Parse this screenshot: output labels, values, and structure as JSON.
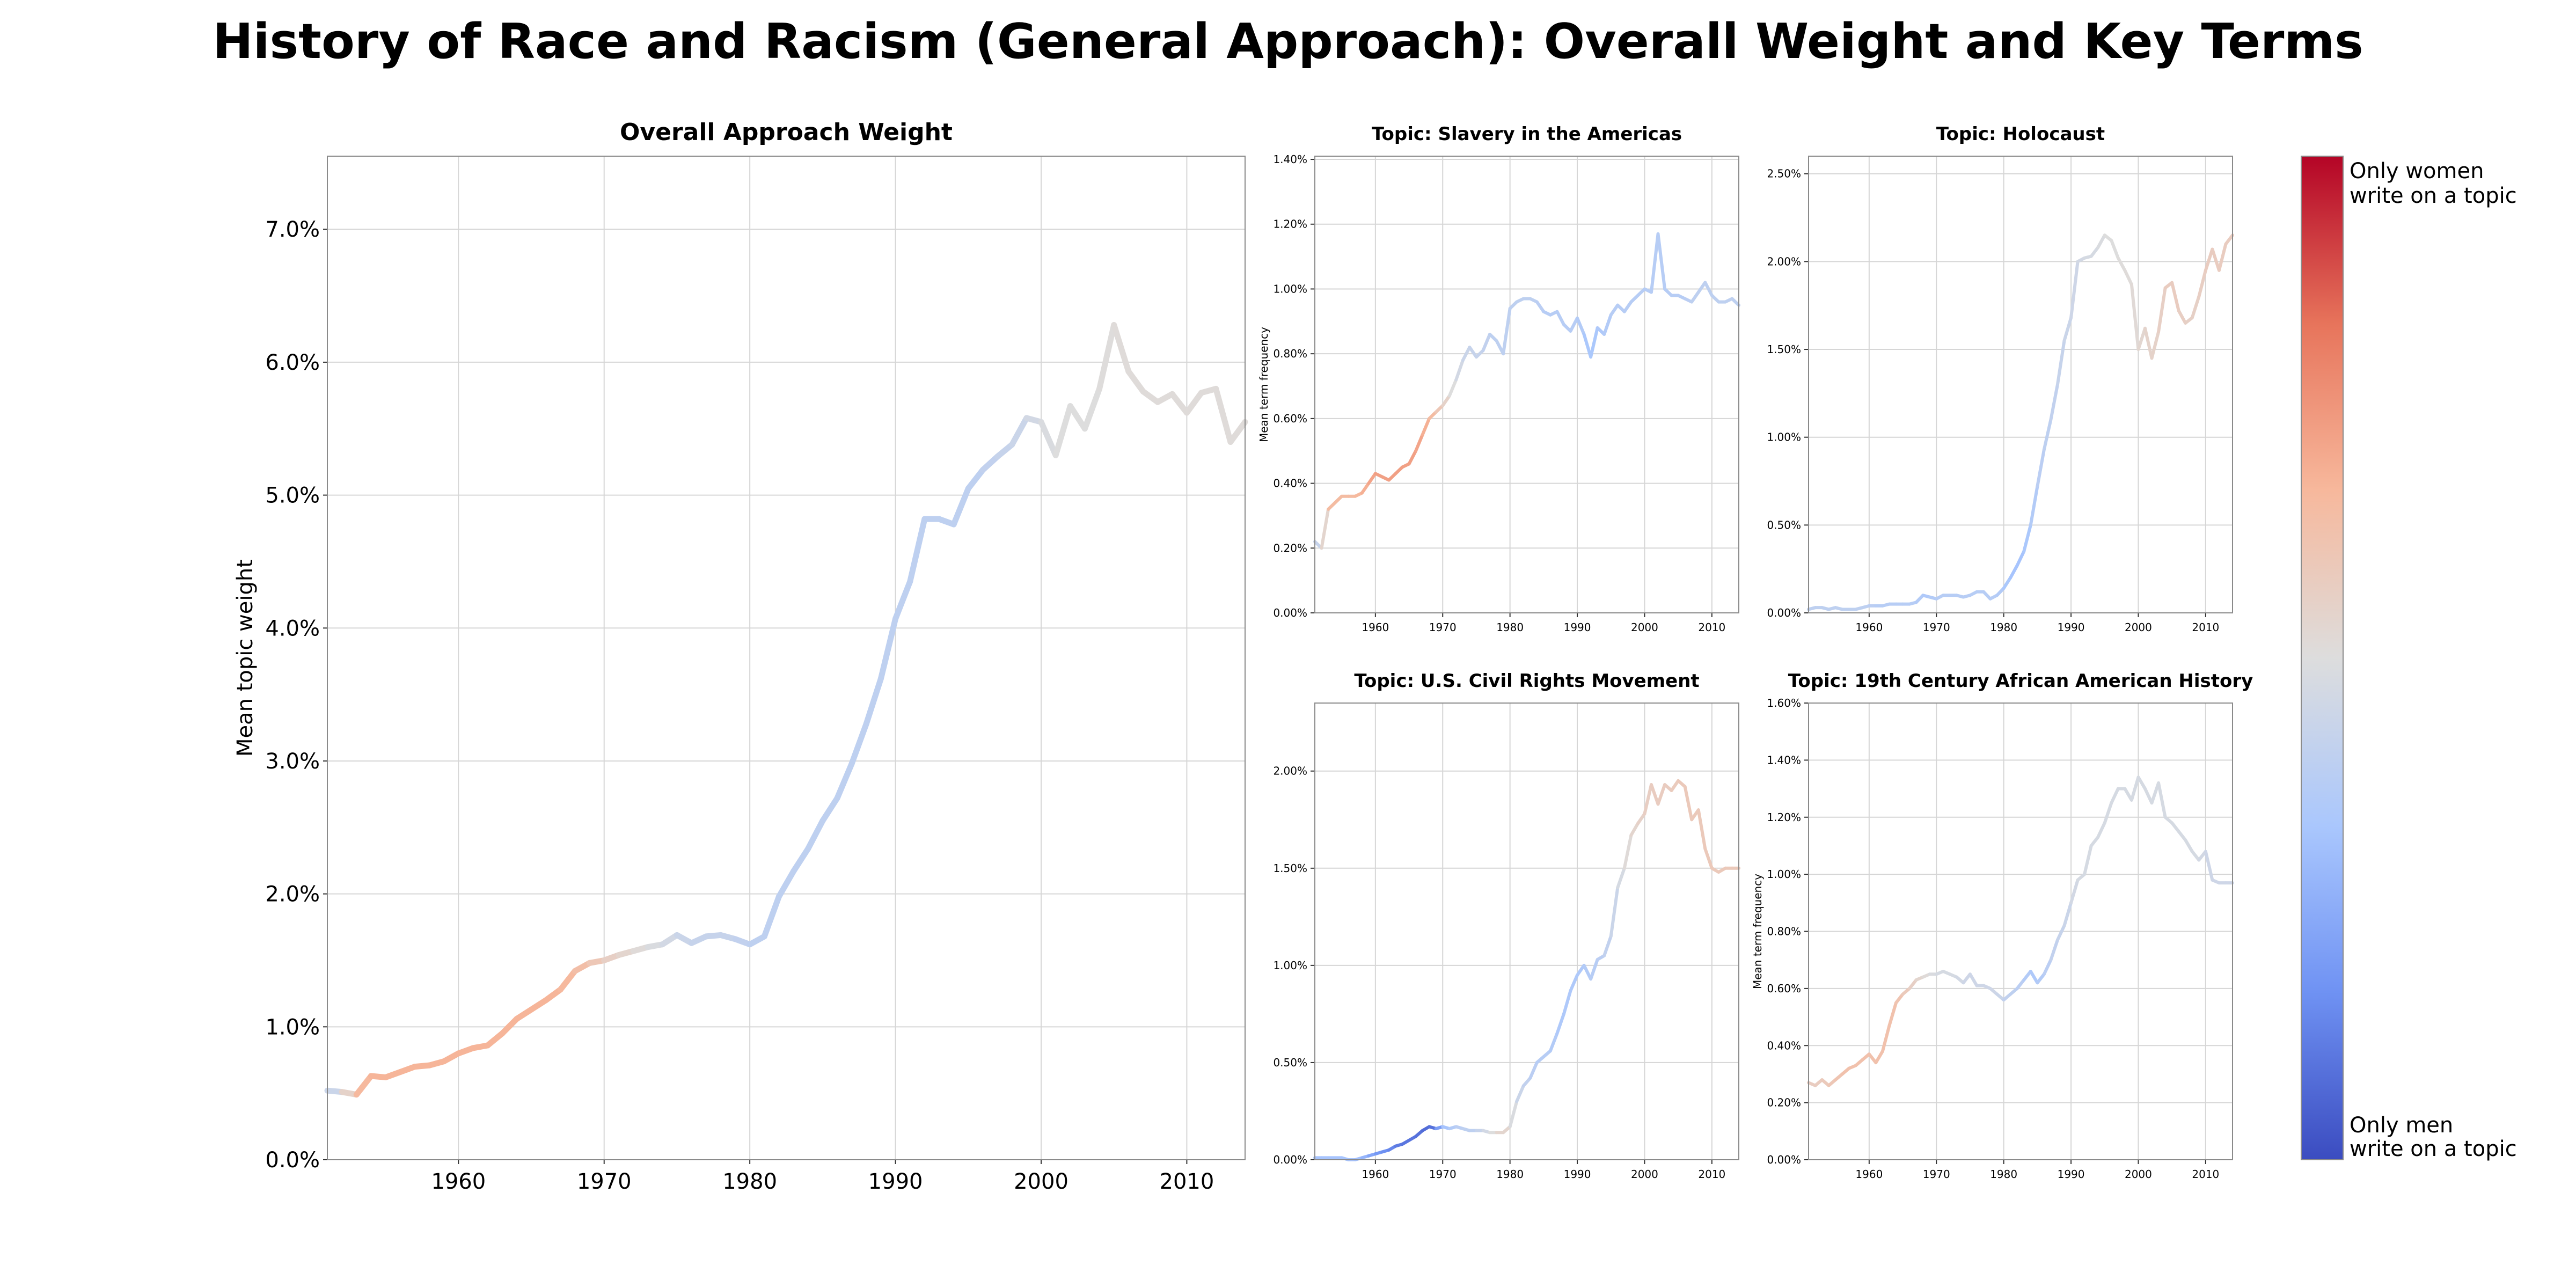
{
  "title": "History of Race and Racism (General Approach): Overall Weight and Key Terms",
  "colorbar": {
    "top_label": [
      "Only women",
      "write on a topic"
    ],
    "bottom_label": [
      "Only men",
      "write on a topic"
    ],
    "colors": [
      "#b40426",
      "#e7745b",
      "#f7b89c",
      "#dddddd",
      "#aac7fd",
      "#6f92f3",
      "#3b4cc0"
    ]
  },
  "chart_data": [
    {
      "id": "overall",
      "type": "line",
      "title": "Overall Approach Weight",
      "xlabel": "",
      "ylabel": "Mean topic weight",
      "xlim": [
        1951,
        2014
      ],
      "ylim": [
        0,
        7.55
      ],
      "x_ticks": [
        1960,
        1970,
        1980,
        1990,
        2000,
        2010
      ],
      "x_tick_labels": [
        "1960",
        "1970",
        "1980",
        "1990",
        "2000",
        "2010"
      ],
      "y_ticks": [
        0,
        1,
        2,
        3,
        4,
        5,
        6,
        7
      ],
      "y_tick_labels": [
        "0.0%",
        "1.0%",
        "2.0%",
        "3.0%",
        "4.0%",
        "5.0%",
        "6.0%",
        "7.0%"
      ],
      "grid": true,
      "x": [
        1951,
        1952,
        1953,
        1954,
        1955,
        1956,
        1957,
        1958,
        1959,
        1960,
        1961,
        1962,
        1963,
        1964,
        1965,
        1966,
        1967,
        1968,
        1969,
        1970,
        1971,
        1972,
        1973,
        1974,
        1975,
        1976,
        1977,
        1978,
        1979,
        1980,
        1981,
        1982,
        1983,
        1984,
        1985,
        1986,
        1987,
        1988,
        1989,
        1990,
        1991,
        1992,
        1993,
        1994,
        1995,
        1996,
        1997,
        1998,
        1999,
        2000,
        2001,
        2002,
        2003,
        2004,
        2005,
        2006,
        2007,
        2008,
        2009,
        2010,
        2011,
        2012,
        2013,
        2014
      ],
      "values": [
        0.52,
        0.51,
        0.49,
        0.63,
        0.62,
        0.66,
        0.7,
        0.71,
        0.74,
        0.8,
        0.84,
        0.86,
        0.95,
        1.06,
        1.13,
        1.2,
        1.28,
        1.42,
        1.48,
        1.5,
        1.54,
        1.57,
        1.6,
        1.62,
        1.69,
        1.63,
        1.68,
        1.69,
        1.66,
        1.62,
        1.68,
        1.98,
        2.17,
        2.34,
        2.55,
        2.72,
        2.98,
        3.28,
        3.62,
        4.07,
        4.35,
        4.82,
        4.82,
        4.78,
        5.05,
        5.19,
        5.29,
        5.38,
        5.58,
        5.55,
        5.3,
        5.67,
        5.5,
        5.8,
        6.28,
        5.93,
        5.78,
        5.7,
        5.76,
        5.62,
        5.77,
        5.8,
        5.4,
        5.55
      ],
      "gender_score": [
        -0.15,
        -0.1,
        0.3,
        0.35,
        0.35,
        0.35,
        0.35,
        0.35,
        0.35,
        0.35,
        0.35,
        0.35,
        0.35,
        0.35,
        0.35,
        0.35,
        0.35,
        0.3,
        0.25,
        0.15,
        0.1,
        0.05,
        0.0,
        -0.05,
        -0.1,
        -0.15,
        -0.15,
        -0.15,
        -0.15,
        -0.2,
        -0.2,
        -0.2,
        -0.2,
        -0.2,
        -0.2,
        -0.2,
        -0.2,
        -0.2,
        -0.2,
        -0.2,
        -0.2,
        -0.2,
        -0.2,
        -0.2,
        -0.2,
        -0.2,
        -0.15,
        -0.15,
        -0.1,
        -0.05,
        0.0,
        0.0,
        0.0,
        0.0,
        0.02,
        0.02,
        0.02,
        0.02,
        0.02,
        0.02,
        0.02,
        0.02,
        0.02,
        0.02
      ]
    },
    {
      "id": "slavery",
      "type": "line",
      "title": "Topic: Slavery in the Americas",
      "ylabel": "Mean term frequency",
      "xlim": [
        1951,
        2014
      ],
      "ylim": [
        0,
        1.41
      ],
      "x_ticks": [
        1960,
        1970,
        1980,
        1990,
        2000,
        2010
      ],
      "x_tick_labels": [
        "1960",
        "1970",
        "1980",
        "1990",
        "2000",
        "2010"
      ],
      "y_ticks": [
        0,
        0.2,
        0.4,
        0.6,
        0.8,
        1.0,
        1.2,
        1.4
      ],
      "y_tick_labels": [
        "0.00%",
        "0.20%",
        "0.40%",
        "0.60%",
        "0.80%",
        "1.00%",
        "1.20%",
        "1.40%"
      ],
      "grid": true,
      "x": [
        1951,
        1952,
        1953,
        1954,
        1955,
        1956,
        1957,
        1958,
        1959,
        1960,
        1961,
        1962,
        1963,
        1964,
        1965,
        1966,
        1967,
        1968,
        1969,
        1970,
        1971,
        1972,
        1973,
        1974,
        1975,
        1976,
        1977,
        1978,
        1979,
        1980,
        1981,
        1982,
        1983,
        1984,
        1985,
        1986,
        1987,
        1988,
        1989,
        1990,
        1991,
        1992,
        1993,
        1994,
        1995,
        1996,
        1997,
        1998,
        1999,
        2000,
        2001,
        2002,
        2003,
        2004,
        2005,
        2006,
        2007,
        2008,
        2009,
        2010,
        2011,
        2012,
        2013,
        2014
      ],
      "values": [
        0.22,
        0.2,
        0.32,
        0.34,
        0.36,
        0.36,
        0.36,
        0.37,
        0.4,
        0.43,
        0.42,
        0.41,
        0.43,
        0.45,
        0.46,
        0.5,
        0.55,
        0.6,
        0.62,
        0.64,
        0.67,
        0.72,
        0.78,
        0.82,
        0.79,
        0.81,
        0.86,
        0.84,
        0.8,
        0.94,
        0.96,
        0.97,
        0.97,
        0.96,
        0.93,
        0.92,
        0.93,
        0.89,
        0.87,
        0.91,
        0.86,
        0.79,
        0.88,
        0.86,
        0.92,
        0.95,
        0.93,
        0.96,
        0.98,
        1.0,
        0.99,
        1.17,
        1.0,
        0.98,
        0.98,
        0.97,
        0.96,
        0.99,
        1.02,
        0.98,
        0.96,
        0.96,
        0.97,
        0.95
      ],
      "gender_score": [
        -0.15,
        -0.15,
        0.3,
        0.3,
        0.3,
        0.3,
        0.3,
        0.35,
        0.4,
        0.45,
        0.45,
        0.45,
        0.45,
        0.45,
        0.45,
        0.45,
        0.4,
        0.35,
        0.25,
        0.15,
        0.05,
        -0.05,
        -0.1,
        -0.15,
        -0.15,
        -0.15,
        -0.2,
        -0.2,
        -0.2,
        -0.2,
        -0.2,
        -0.2,
        -0.2,
        -0.2,
        -0.25,
        -0.25,
        -0.25,
        -0.25,
        -0.25,
        -0.25,
        -0.3,
        -0.35,
        -0.3,
        -0.3,
        -0.25,
        -0.25,
        -0.25,
        -0.25,
        -0.25,
        -0.25,
        -0.25,
        -0.25,
        -0.25,
        -0.25,
        -0.25,
        -0.25,
        -0.2,
        -0.2,
        -0.2,
        -0.2,
        -0.2,
        -0.2,
        -0.2,
        -0.2
      ]
    },
    {
      "id": "holocaust",
      "type": "line",
      "title": "Topic: Holocaust",
      "ylabel": "",
      "xlim": [
        1951,
        2014
      ],
      "ylim": [
        0,
        2.6
      ],
      "x_ticks": [
        1960,
        1970,
        1980,
        1990,
        2000,
        2010
      ],
      "x_tick_labels": [
        "1960",
        "1970",
        "1980",
        "1990",
        "2000",
        "2010"
      ],
      "y_ticks": [
        0,
        0.5,
        1.0,
        1.5,
        2.0,
        2.5
      ],
      "y_tick_labels": [
        "0.00%",
        "0.50%",
        "1.00%",
        "1.50%",
        "2.00%",
        "2.50%"
      ],
      "grid": true,
      "x": [
        1951,
        1952,
        1953,
        1954,
        1955,
        1956,
        1957,
        1958,
        1959,
        1960,
        1961,
        1962,
        1963,
        1964,
        1965,
        1966,
        1967,
        1968,
        1969,
        1970,
        1971,
        1972,
        1973,
        1974,
        1975,
        1976,
        1977,
        1978,
        1979,
        1980,
        1981,
        1982,
        1983,
        1984,
        1985,
        1986,
        1987,
        1988,
        1989,
        1990,
        1991,
        1992,
        1993,
        1994,
        1995,
        1996,
        1997,
        1998,
        1999,
        2000,
        2001,
        2002,
        2003,
        2004,
        2005,
        2006,
        2007,
        2008,
        2009,
        2010,
        2011,
        2012,
        2013,
        2014
      ],
      "values": [
        0.02,
        0.03,
        0.03,
        0.02,
        0.03,
        0.02,
        0.02,
        0.02,
        0.03,
        0.04,
        0.04,
        0.04,
        0.05,
        0.05,
        0.05,
        0.05,
        0.06,
        0.1,
        0.09,
        0.08,
        0.1,
        0.1,
        0.1,
        0.09,
        0.1,
        0.12,
        0.12,
        0.08,
        0.1,
        0.14,
        0.2,
        0.27,
        0.35,
        0.5,
        0.72,
        0.93,
        1.1,
        1.3,
        1.55,
        1.68,
        2.0,
        2.02,
        2.03,
        2.08,
        2.15,
        2.12,
        2.02,
        1.95,
        1.87,
        1.5,
        1.62,
        1.45,
        1.6,
        1.85,
        1.88,
        1.72,
        1.65,
        1.68,
        1.8,
        1.95,
        2.07,
        1.95,
        2.1,
        2.15
      ],
      "gender_score": [
        -0.2,
        -0.2,
        -0.2,
        -0.2,
        -0.2,
        -0.2,
        -0.2,
        -0.2,
        -0.2,
        -0.2,
        -0.25,
        -0.25,
        -0.25,
        -0.25,
        -0.25,
        -0.25,
        -0.25,
        -0.3,
        -0.3,
        -0.25,
        -0.25,
        -0.25,
        -0.25,
        -0.25,
        -0.25,
        -0.25,
        -0.25,
        -0.25,
        -0.25,
        -0.3,
        -0.35,
        -0.35,
        -0.35,
        -0.3,
        -0.25,
        -0.2,
        -0.2,
        -0.15,
        -0.15,
        -0.1,
        -0.1,
        -0.05,
        -0.05,
        -0.05,
        0.0,
        0.0,
        0.0,
        0.02,
        0.02,
        0.05,
        0.08,
        0.1,
        0.1,
        0.15,
        0.15,
        0.15,
        0.12,
        0.12,
        0.12,
        0.15,
        0.15,
        0.15,
        0.15,
        0.15
      ]
    },
    {
      "id": "civil-rights",
      "type": "line",
      "title": "Topic: U.S. Civil Rights Movement",
      "ylabel": "",
      "xlim": [
        1951,
        2014
      ],
      "ylim": [
        0,
        2.35
      ],
      "x_ticks": [
        1960,
        1970,
        1980,
        1990,
        2000,
        2010
      ],
      "x_tick_labels": [
        "1960",
        "1970",
        "1980",
        "1990",
        "2000",
        "2010"
      ],
      "y_ticks": [
        0,
        0.5,
        1.0,
        1.5,
        2.0
      ],
      "y_tick_labels": [
        "0.00%",
        "0.50%",
        "1.00%",
        "1.50%",
        "2.00%"
      ],
      "grid": true,
      "x": [
        1951,
        1952,
        1953,
        1954,
        1955,
        1956,
        1957,
        1958,
        1959,
        1960,
        1961,
        1962,
        1963,
        1964,
        1965,
        1966,
        1967,
        1968,
        1969,
        1970,
        1971,
        1972,
        1973,
        1974,
        1975,
        1976,
        1977,
        1978,
        1979,
        1980,
        1981,
        1982,
        1983,
        1984,
        1985,
        1986,
        1987,
        1988,
        1989,
        1990,
        1991,
        1992,
        1993,
        1994,
        1995,
        1996,
        1997,
        1998,
        1999,
        2000,
        2001,
        2002,
        2003,
        2004,
        2005,
        2006,
        2007,
        2008,
        2009,
        2010,
        2011,
        2012,
        2013,
        2014
      ],
      "values": [
        0.01,
        0.01,
        0.01,
        0.01,
        0.01,
        0.0,
        0.0,
        0.01,
        0.02,
        0.03,
        0.04,
        0.05,
        0.07,
        0.08,
        0.1,
        0.12,
        0.15,
        0.17,
        0.16,
        0.17,
        0.16,
        0.17,
        0.16,
        0.15,
        0.15,
        0.15,
        0.14,
        0.14,
        0.14,
        0.17,
        0.3,
        0.38,
        0.42,
        0.5,
        0.53,
        0.56,
        0.65,
        0.75,
        0.87,
        0.95,
        1.0,
        0.93,
        1.03,
        1.05,
        1.15,
        1.4,
        1.5,
        1.67,
        1.73,
        1.78,
        1.93,
        1.83,
        1.93,
        1.9,
        1.95,
        1.92,
        1.75,
        1.8,
        1.6,
        1.5,
        1.48,
        1.5,
        1.5,
        1.5
      ],
      "gender_score": [
        -0.35,
        -0.35,
        -0.35,
        -0.35,
        -0.35,
        -0.35,
        -0.35,
        -0.4,
        -0.5,
        -0.6,
        -0.65,
        -0.7,
        -0.75,
        -0.8,
        -0.8,
        -0.8,
        -0.85,
        -0.85,
        -0.8,
        -0.4,
        -0.3,
        -0.25,
        -0.2,
        -0.2,
        -0.2,
        -0.1,
        -0.05,
        0.05,
        0.1,
        0.05,
        -0.1,
        -0.15,
        -0.2,
        -0.25,
        -0.25,
        -0.25,
        -0.3,
        -0.3,
        -0.3,
        -0.3,
        -0.3,
        -0.25,
        -0.25,
        -0.2,
        -0.15,
        -0.1,
        0.0,
        0.05,
        0.1,
        0.12,
        0.15,
        0.15,
        0.15,
        0.15,
        0.18,
        0.18,
        0.18,
        0.18,
        0.18,
        0.18,
        0.18,
        0.18,
        0.18,
        0.18
      ]
    },
    {
      "id": "african-american",
      "type": "line",
      "title": "Topic: 19th Century African American History",
      "ylabel": "Mean term frequency",
      "xlim": [
        1951,
        2014
      ],
      "ylim": [
        0,
        1.6
      ],
      "x_ticks": [
        1960,
        1970,
        1980,
        1990,
        2000,
        2010
      ],
      "x_tick_labels": [
        "1960",
        "1970",
        "1980",
        "1990",
        "2000",
        "2010"
      ],
      "y_ticks": [
        0,
        0.2,
        0.4,
        0.6,
        0.8,
        1.0,
        1.2,
        1.4,
        1.6
      ],
      "y_tick_labels": [
        "0.00%",
        "0.20%",
        "0.40%",
        "0.60%",
        "0.80%",
        "1.00%",
        "1.20%",
        "1.40%",
        "1.60%"
      ],
      "grid": true,
      "x": [
        1951,
        1952,
        1953,
        1954,
        1955,
        1956,
        1957,
        1958,
        1959,
        1960,
        1961,
        1962,
        1963,
        1964,
        1965,
        1966,
        1967,
        1968,
        1969,
        1970,
        1971,
        1972,
        1973,
        1974,
        1975,
        1976,
        1977,
        1978,
        1979,
        1980,
        1981,
        1982,
        1983,
        1984,
        1985,
        1986,
        1987,
        1988,
        1989,
        1990,
        1991,
        1992,
        1993,
        1994,
        1995,
        1996,
        1997,
        1998,
        1999,
        2000,
        2001,
        2002,
        2003,
        2004,
        2005,
        2006,
        2007,
        2008,
        2009,
        2010,
        2011,
        2012,
        2013,
        2014
      ],
      "values": [
        0.27,
        0.26,
        0.28,
        0.26,
        0.28,
        0.3,
        0.32,
        0.33,
        0.35,
        0.37,
        0.34,
        0.38,
        0.47,
        0.55,
        0.58,
        0.6,
        0.63,
        0.64,
        0.65,
        0.65,
        0.66,
        0.65,
        0.64,
        0.62,
        0.65,
        0.61,
        0.61,
        0.6,
        0.58,
        0.56,
        0.58,
        0.6,
        0.63,
        0.66,
        0.62,
        0.65,
        0.7,
        0.77,
        0.82,
        0.9,
        0.98,
        1.0,
        1.1,
        1.13,
        1.18,
        1.25,
        1.3,
        1.3,
        1.26,
        1.34,
        1.3,
        1.25,
        1.32,
        1.2,
        1.18,
        1.15,
        1.12,
        1.08,
        1.05,
        1.08,
        0.98,
        0.97,
        0.97,
        0.97
      ],
      "gender_score": [
        0.15,
        0.15,
        0.15,
        0.2,
        0.2,
        0.25,
        0.25,
        0.25,
        0.25,
        0.25,
        0.25,
        0.25,
        0.25,
        0.25,
        0.2,
        0.15,
        0.1,
        0.05,
        0.0,
        -0.05,
        -0.05,
        -0.05,
        -0.05,
        -0.1,
        -0.1,
        -0.1,
        -0.1,
        -0.1,
        -0.1,
        -0.15,
        -0.2,
        -0.2,
        -0.25,
        -0.3,
        -0.3,
        -0.25,
        -0.2,
        -0.15,
        -0.15,
        -0.1,
        -0.05,
        -0.05,
        -0.05,
        -0.05,
        -0.05,
        -0.05,
        -0.05,
        -0.05,
        -0.05,
        -0.05,
        -0.05,
        -0.05,
        -0.05,
        -0.05,
        -0.05,
        -0.05,
        -0.05,
        -0.05,
        -0.05,
        -0.1,
        -0.1,
        -0.1,
        -0.1,
        -0.1
      ]
    }
  ]
}
